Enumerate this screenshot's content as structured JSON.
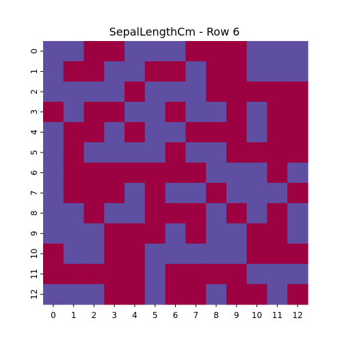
{
  "chart_data": {
    "type": "heatmap",
    "title": "SepalLengthCm - Row 6",
    "x_ticks": [
      "0",
      "1",
      "2",
      "3",
      "4",
      "5",
      "6",
      "7",
      "8",
      "9",
      "10",
      "11",
      "12"
    ],
    "y_ticks": [
      "0",
      "1",
      "2",
      "3",
      "4",
      "5",
      "6",
      "7",
      "8",
      "9",
      "10",
      "11",
      "12"
    ],
    "colors": {
      "0": "#5e4fa2",
      "1": "#9e0142"
    },
    "grid": false,
    "colorbar": false,
    "matrix": [
      [
        0,
        0,
        1,
        1,
        0,
        0,
        0,
        1,
        1,
        1,
        0,
        0,
        0
      ],
      [
        0,
        1,
        1,
        0,
        0,
        1,
        1,
        0,
        1,
        1,
        0,
        0,
        0
      ],
      [
        0,
        0,
        0,
        0,
        1,
        0,
        0,
        0,
        1,
        1,
        1,
        1,
        1
      ],
      [
        1,
        0,
        1,
        1,
        0,
        0,
        1,
        0,
        0,
        1,
        0,
        1,
        1
      ],
      [
        0,
        1,
        1,
        0,
        1,
        0,
        0,
        1,
        1,
        1,
        0,
        1,
        1
      ],
      [
        0,
        1,
        0,
        0,
        0,
        0,
        1,
        0,
        0,
        1,
        1,
        1,
        1
      ],
      [
        0,
        1,
        1,
        1,
        1,
        1,
        1,
        1,
        0,
        0,
        0,
        1,
        0
      ],
      [
        0,
        1,
        1,
        1,
        0,
        1,
        0,
        0,
        1,
        0,
        0,
        0,
        1
      ],
      [
        0,
        0,
        1,
        0,
        0,
        1,
        1,
        1,
        0,
        1,
        0,
        1,
        0
      ],
      [
        0,
        0,
        0,
        1,
        1,
        1,
        0,
        1,
        0,
        0,
        1,
        1,
        0
      ],
      [
        1,
        0,
        0,
        1,
        1,
        0,
        0,
        0,
        0,
        0,
        1,
        1,
        1
      ],
      [
        1,
        1,
        1,
        1,
        1,
        0,
        1,
        1,
        1,
        1,
        0,
        0,
        0
      ],
      [
        0,
        0,
        0,
        1,
        1,
        0,
        1,
        1,
        0,
        1,
        1,
        0,
        1
      ]
    ]
  }
}
